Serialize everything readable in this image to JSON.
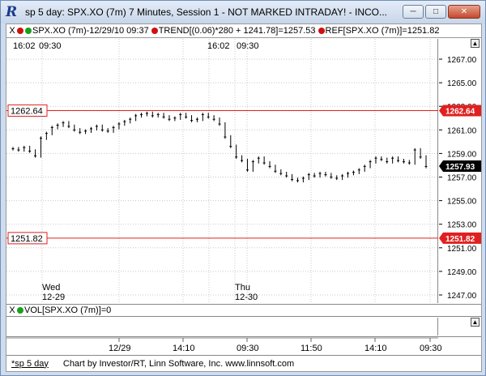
{
  "window": {
    "title": "sp 5 day: SPX.XO (7m) 7 Minutes, Session 1 - NOT MARKED INTRADAY! - INCO...",
    "app_icon": "R",
    "minimize_icon": "minimize-icon",
    "maximize_icon": "maximize-icon",
    "close_icon": "close-icon"
  },
  "legend": {
    "close_x": "X",
    "series_label": "SPX.XO (7m)-12/29/10 09:37",
    "trend_label": "TREND[(0.06)*280 + 1241.78]=1257.53",
    "ref_label": "REF[SPX.XO (7m)]=1251.82"
  },
  "top_times": {
    "left_a": "16:02",
    "left_b": "09:30",
    "mid_a": "16:02",
    "mid_b": "09:30"
  },
  "day_labels": {
    "day1_name": "Wed",
    "day1_date": "12-29",
    "day2_name": "Thu",
    "day2_date": "12-30"
  },
  "price_axis": {
    "ticks": [
      "1267.00",
      "1265.00",
      "1263.00",
      "1261.00",
      "1259.00",
      "1257.00",
      "1255.00",
      "1253.00",
      "1251.00",
      "1249.00",
      "1247.00"
    ],
    "last_price": "1257.93",
    "upper_ref": "1262.64",
    "lower_ref": "1251.82"
  },
  "ref_lines": {
    "upper_label": "1262.64",
    "lower_label": "1251.82"
  },
  "volume": {
    "close_x": "X",
    "label": "VOL[SPX.XO (7m)]=0"
  },
  "date_axis": {
    "ticks": [
      "12/29",
      "14:10",
      "09:30",
      "11:50",
      "14:10",
      "09:30"
    ]
  },
  "status": {
    "tab": "*sp 5 day",
    "credit": "Chart by Investor/RT, Linn Software, Inc. www.linnsoft.com"
  },
  "chart_data": {
    "type": "bar",
    "series_name": "SPX.XO (7m)",
    "ylim": [
      1246,
      1268
    ],
    "reference_lines": [
      1262.64,
      1251.82
    ],
    "last": 1257.93,
    "values": [
      1259.4,
      1259.3,
      1259.5,
      1259.2,
      1258.8,
      1260.3,
      1260.7,
      1261.2,
      1261.4,
      1261.6,
      1261.3,
      1261.0,
      1260.8,
      1260.9,
      1261.1,
      1261.3,
      1261.0,
      1260.9,
      1261.2,
      1261.5,
      1261.7,
      1261.9,
      1262.2,
      1262.3,
      1262.4,
      1262.2,
      1262.3,
      1262.1,
      1261.9,
      1262.0,
      1262.3,
      1262.1,
      1261.8,
      1261.9,
      1262.3,
      1262.1,
      1261.9,
      1261.5,
      1260.4,
      1259.6,
      1258.7,
      1258.4,
      1257.6,
      1258.3,
      1258.6,
      1258.2,
      1257.9,
      1257.5,
      1257.3,
      1257.1,
      1256.8,
      1256.7,
      1256.9,
      1257.2,
      1257.1,
      1257.3,
      1257.2,
      1257.0,
      1256.9,
      1257.1,
      1257.3,
      1257.4,
      1257.6,
      1257.9,
      1258.3,
      1258.6,
      1258.5,
      1258.3,
      1258.6,
      1258.4,
      1258.3,
      1258.2,
      1259.3,
      1258.7,
      1257.9
    ]
  }
}
